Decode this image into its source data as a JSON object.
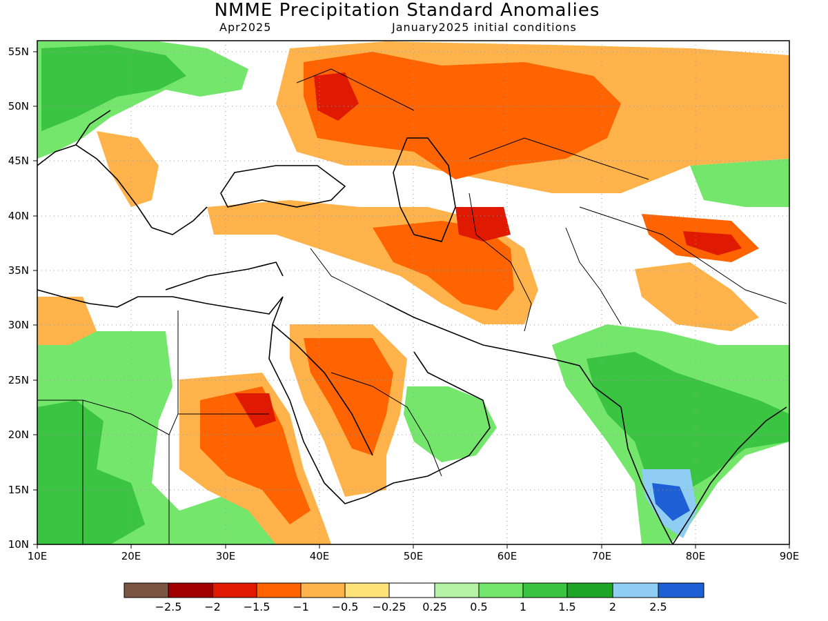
{
  "header": {
    "title": "NMME Precipitation Standard Anomalies",
    "target_month": "Apr2025",
    "init_conditions": "January2025 initial conditions"
  },
  "axes": {
    "lon_labels": [
      "10E",
      "20E",
      "30E",
      "40E",
      "50E",
      "60E",
      "70E",
      "80E",
      "90E"
    ],
    "lat_labels": [
      "55N",
      "50N",
      "45N",
      "40N",
      "35N",
      "30N",
      "25N",
      "20N",
      "15N",
      "10N"
    ],
    "lon_range": [
      10,
      90
    ],
    "lat_range": [
      10,
      56
    ]
  },
  "colorbar": {
    "colors": [
      "#7b5443",
      "#a10000",
      "#e01a00",
      "#ff6400",
      "#ffb34a",
      "#ffe27a",
      "#ffffff",
      "#b6f2a6",
      "#73e66b",
      "#3ac442",
      "#1ea526",
      "#8fcdf2",
      "#1f5fd6"
    ],
    "labels": [
      "−2.5",
      "−2",
      "−1.5",
      "−1",
      "−0.5",
      "−0.25",
      "0.25",
      "0.5",
      "1",
      "1.5",
      "2",
      "2.5"
    ]
  },
  "regions": {
    "dry": {
      "color": "#ffb34a",
      "label": "-1"
    },
    "wet": {
      "color": "#73e66b",
      "label": "1"
    }
  }
}
